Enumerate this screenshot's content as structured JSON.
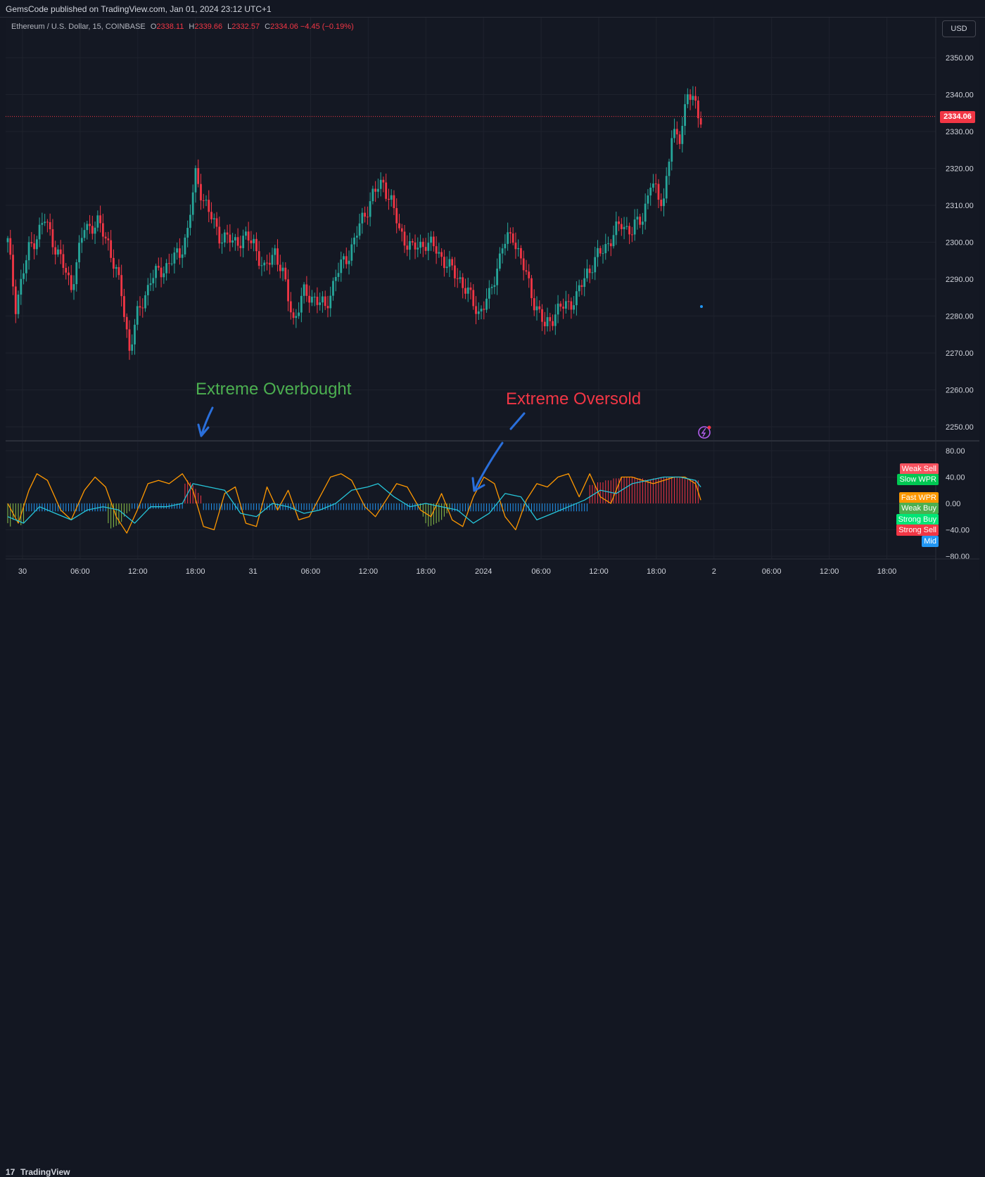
{
  "header": {
    "published": "GemsCode published on TradingView.com, Jan 01, 2024 23:12 UTC+1"
  },
  "symbol": {
    "name": "Ethereum / U.S. Dollar, 15, COINBASE",
    "o_label": "O",
    "o_value": "2338.11",
    "h_label": "H",
    "h_value": "2339.66",
    "l_label": "L",
    "l_value": "2332.57",
    "c_label": "C",
    "c_value": "2334.06",
    "change": "−4.45 (−0.19%)"
  },
  "currency_button": "USD",
  "last_price_tag": "2334.06",
  "annotations": {
    "overbought": "Extreme  Overbought",
    "oversold": "Extreme  Oversold"
  },
  "indicator_badges": [
    {
      "label": "Weak Sell",
      "color": "#f7525f"
    },
    {
      "label": "Slow WPR",
      "color": "#00c853"
    },
    {
      "label": "Fast WPR",
      "color": "#ff9800"
    },
    {
      "label": "Weak Buy",
      "color": "#4caf50"
    },
    {
      "label": "Strong Buy",
      "color": "#00e676"
    },
    {
      "label": "Strong Sell",
      "color": "#f23645"
    },
    {
      "label": "Mid",
      "color": "#2196f3"
    }
  ],
  "footer": {
    "logo": "TradingView"
  },
  "colors": {
    "up": "#26a69a",
    "down": "#f23645",
    "background": "#131722",
    "grid": "#1e222d",
    "fast_wpr": "#ff9800",
    "slow_wpr": "#26c6da",
    "hist_mid": "#2196f3",
    "hist_buy": "#8bc34a",
    "hist_sell": "#f23645"
  },
  "chart_data": [
    {
      "type": "candlestick",
      "title": "Ethereum / U.S. Dollar, 15, COINBASE",
      "ylabel": "USD",
      "ylim": [
        2245,
        2355
      ],
      "yticks": [
        2250,
        2260,
        2270,
        2280,
        2290,
        2300,
        2310,
        2320,
        2330,
        2340,
        2350
      ],
      "ytick_labels": [
        "2250.00",
        "2260.00",
        "2270.00",
        "2280.00",
        "2290.00",
        "2300.00",
        "2310.00",
        "2320.00",
        "2330.00",
        "2340.00",
        "2350.00"
      ],
      "xtick_labels": [
        "30",
        "06:00",
        "12:00",
        "18:00",
        "31",
        "06:00",
        "12:00",
        "18:00",
        "2024",
        "06:00",
        "12:00",
        "18:00",
        "2",
        "06:00",
        "12:00",
        "18:00"
      ],
      "last_price": 2334.06,
      "close_path": [
        [
          0,
          2300
        ],
        [
          3,
          2283
        ],
        [
          8,
          2298
        ],
        [
          14,
          2306
        ],
        [
          19,
          2297
        ],
        [
          24,
          2288
        ],
        [
          29,
          2304
        ],
        [
          34,
          2305
        ],
        [
          38,
          2300
        ],
        [
          43,
          2286
        ],
        [
          46,
          2271
        ],
        [
          49,
          2280
        ],
        [
          54,
          2290
        ],
        [
          59,
          2293
        ],
        [
          65,
          2297
        ],
        [
          68,
          2303
        ],
        [
          71,
          2318
        ],
        [
          76,
          2308
        ],
        [
          80,
          2302
        ],
        [
          85,
          2300
        ],
        [
          89,
          2301
        ],
        [
          93,
          2300
        ],
        [
          97,
          2292
        ],
        [
          101,
          2298
        ],
        [
          104,
          2291
        ],
        [
          108,
          2279
        ],
        [
          112,
          2286
        ],
        [
          116,
          2285
        ],
        [
          120,
          2282
        ],
        [
          124,
          2291
        ],
        [
          129,
          2297
        ],
        [
          134,
          2306
        ],
        [
          138,
          2313
        ],
        [
          142,
          2316
        ],
        [
          145,
          2311
        ],
        [
          148,
          2303
        ],
        [
          153,
          2298
        ],
        [
          158,
          2300
        ],
        [
          162,
          2298
        ],
        [
          167,
          2293
        ],
        [
          171,
          2290
        ],
        [
          174,
          2286
        ],
        [
          178,
          2281
        ],
        [
          182,
          2285
        ],
        [
          187,
          2299
        ],
        [
          191,
          2302
        ],
        [
          195,
          2293
        ],
        [
          199,
          2284
        ],
        [
          203,
          2277
        ],
        [
          207,
          2281
        ],
        [
          211,
          2283
        ],
        [
          215,
          2285
        ],
        [
          219,
          2292
        ],
        [
          223,
          2296
        ],
        [
          228,
          2301
        ],
        [
          232,
          2305
        ],
        [
          236,
          2303
        ],
        [
          240,
          2307
        ],
        [
          243,
          2316
        ],
        [
          246,
          2312
        ],
        [
          248,
          2312
        ],
        [
          251,
          2328
        ],
        [
          254,
          2329
        ],
        [
          257,
          2340
        ],
        [
          260,
          2337
        ],
        [
          262,
          2334
        ]
      ]
    },
    {
      "type": "line",
      "title": "WPR oscillator",
      "ylim": [
        -85,
        85
      ],
      "yticks": [
        80,
        40,
        0,
        -40,
        -80
      ],
      "ytick_labels": [
        "80.00",
        "40.00",
        "0.00",
        "−40.00",
        "−80.00"
      ],
      "series": [
        {
          "name": "Fast WPR",
          "color": "#ff9800",
          "x": [
            0,
            4,
            8,
            11,
            15,
            20,
            24,
            29,
            33,
            37,
            41,
            45,
            49,
            53,
            57,
            61,
            66,
            70,
            74,
            78,
            82,
            86,
            90,
            94,
            98,
            102,
            106,
            110,
            114,
            118,
            122,
            126,
            130,
            135,
            139,
            143,
            147,
            151,
            156,
            160,
            164,
            168,
            172,
            176,
            180,
            184,
            188,
            192,
            196,
            200,
            204,
            208,
            212,
            216,
            220,
            224,
            228,
            232,
            236,
            240,
            244,
            248,
            252,
            256,
            260,
            262
          ],
          "values": [
            0,
            -30,
            20,
            45,
            35,
            -10,
            -25,
            20,
            40,
            25,
            -20,
            -45,
            -10,
            30,
            35,
            30,
            45,
            20,
            -35,
            -40,
            15,
            25,
            -30,
            -35,
            25,
            -10,
            20,
            -25,
            -20,
            10,
            40,
            45,
            35,
            -5,
            -20,
            5,
            30,
            25,
            -10,
            -20,
            15,
            -25,
            -35,
            10,
            40,
            30,
            -20,
            -40,
            5,
            30,
            25,
            40,
            45,
            10,
            45,
            10,
            0,
            40,
            40,
            35,
            30,
            35,
            40,
            40,
            30,
            5
          ]
        },
        {
          "name": "Slow WPR",
          "color": "#26c6da",
          "x": [
            0,
            6,
            12,
            18,
            24,
            30,
            36,
            42,
            48,
            54,
            60,
            66,
            70,
            76,
            82,
            88,
            94,
            100,
            106,
            112,
            118,
            124,
            130,
            136,
            140,
            146,
            152,
            158,
            164,
            170,
            176,
            182,
            188,
            194,
            200,
            206,
            212,
            218,
            224,
            230,
            236,
            242,
            248,
            254,
            260,
            262
          ],
          "values": [
            -20,
            -30,
            -5,
            -15,
            -25,
            -10,
            -5,
            -10,
            -30,
            -5,
            -5,
            0,
            30,
            25,
            20,
            -15,
            -20,
            0,
            -5,
            -15,
            -10,
            0,
            20,
            25,
            30,
            10,
            -5,
            0,
            -5,
            -10,
            -30,
            -15,
            15,
            10,
            -25,
            -15,
            -5,
            5,
            20,
            15,
            30,
            35,
            40,
            40,
            35,
            25
          ]
        }
      ],
      "histogram": {
        "name": "Mid",
        "segments": [
          {
            "x0": 0,
            "x1": 7,
            "color": "#8bc34a",
            "values": [
              -30,
              -35,
              -25,
              -20,
              -28,
              -33,
              -30
            ]
          },
          {
            "x0": 7,
            "x1": 38,
            "color": "#2196f3",
            "values": [
              -12
            ]
          },
          {
            "x0": 38,
            "x1": 47,
            "color": "#8bc34a",
            "values": [
              -30,
              -38,
              -36,
              -34,
              -32,
              -28,
              -20,
              -15,
              -12
            ]
          },
          {
            "x0": 47,
            "x1": 67,
            "color": "#2196f3",
            "values": [
              -8
            ]
          },
          {
            "x0": 67,
            "x1": 74,
            "color": "#f23645",
            "values": [
              30,
              35,
              32,
              28,
              22,
              16,
              12
            ]
          },
          {
            "x0": 74,
            "x1": 156,
            "color": "#2196f3",
            "values": [
              -10
            ]
          },
          {
            "x0": 156,
            "x1": 168,
            "color": "#8bc34a",
            "values": [
              -8,
              -20,
              -30,
              -35,
              -34,
              -32,
              -30,
              -28,
              -25,
              -20,
              -15,
              -10
            ]
          },
          {
            "x0": 168,
            "x1": 220,
            "color": "#2196f3",
            "values": [
              -12
            ]
          },
          {
            "x0": 220,
            "x1": 262,
            "color": "#f23645",
            "values": [
              28,
              32,
              35,
              38,
              40,
              40,
              38,
              36,
              38,
              40,
              40,
              39,
              37,
              35
            ]
          }
        ]
      }
    }
  ]
}
